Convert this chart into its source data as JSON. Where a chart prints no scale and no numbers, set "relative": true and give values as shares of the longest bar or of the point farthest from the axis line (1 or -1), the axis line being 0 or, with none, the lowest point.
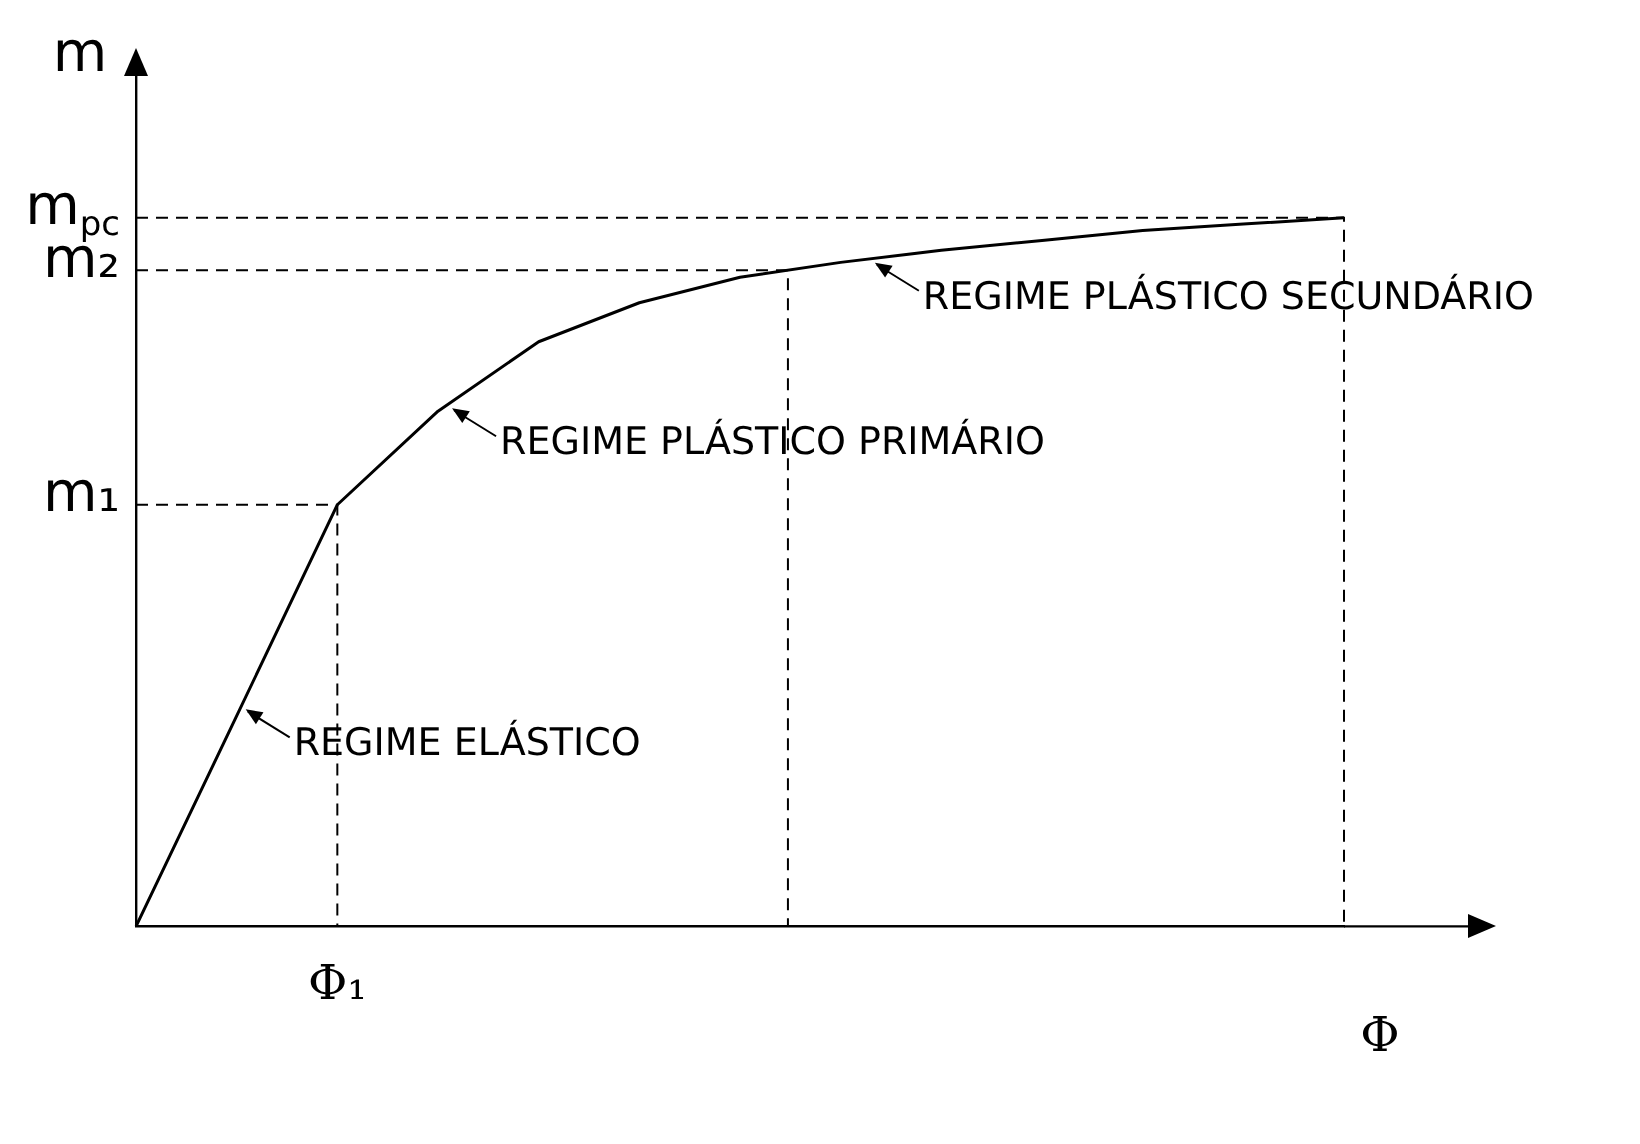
{
  "chart_data": {
    "type": "line",
    "relative": true,
    "xlabel": "Φ",
    "ylabel": "m",
    "categories": [
      null,
      null,
      null,
      null,
      null,
      null,
      null,
      null,
      null,
      null,
      null,
      null,
      null
    ],
    "series": [
      {
        "color": "#000000",
        "values": [
          0,
          0.297,
          0.595,
          0.727,
          0.825,
          0.88,
          0.916,
          0.937,
          0.954,
          0.968,
          0.982,
          0.991,
          1
        ]
      }
    ],
    "ref_lines": [
      {
        "axis": "y",
        "value": 0.595,
        "label": "m₁",
        "line_style": "dashed"
      },
      {
        "axis": "y",
        "value": 0.926,
        "label": "m₂",
        "line_style": "dashed"
      },
      {
        "axis": "y",
        "value": 1,
        "label": "m$_{pc}$",
        "line_style": "dashed"
      }
    ],
    "annotations": [
      "Φ₁",
      "REGIME ELÁSTICO",
      "REGIME PLÁSTICO PRIMÁRIO",
      "REGIME PLÁSTICO SECUNDÁRIO"
    ],
    "grid": false,
    "legend": false,
    "marker": "none",
    "line_style": "solid"
  }
}
